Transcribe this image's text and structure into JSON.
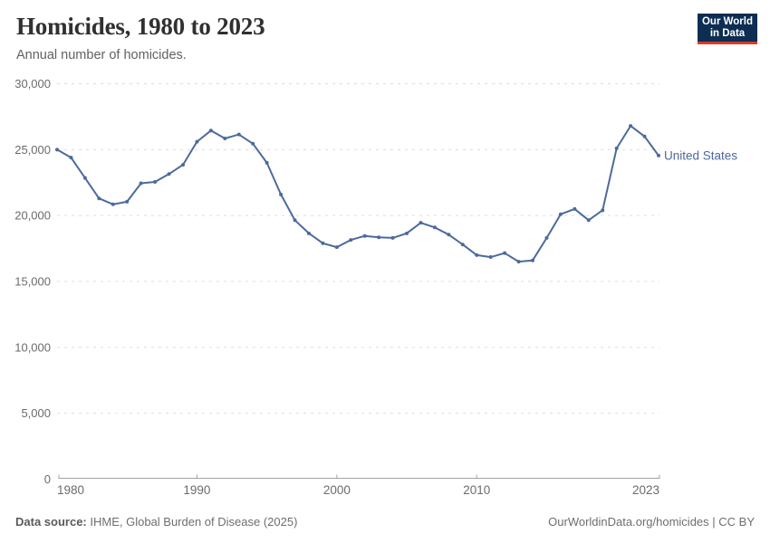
{
  "header": {
    "title": "Homicides, 1980 to 2023",
    "subtitle": "Annual number of homicides.",
    "logo": {
      "line1": "Our World",
      "line2": "in Data",
      "bg_color": "#0d2d52",
      "accent_color": "#d93a2b"
    }
  },
  "chart_data": {
    "type": "line",
    "title": "Homicides, 1980 to 2023",
    "subtitle": "Annual number of homicides.",
    "xlabel": "",
    "ylabel": "",
    "xlim": [
      1980,
      2023
    ],
    "ylim": [
      0,
      30000
    ],
    "grid": "horizontal-dashed",
    "legend_position": "end-of-line",
    "x_ticks": [
      1980,
      1990,
      2000,
      2010,
      2023
    ],
    "x_tick_labels": [
      "1980",
      "1990",
      "2000",
      "2010",
      "2023"
    ],
    "y_ticks": [
      0,
      5000,
      10000,
      15000,
      20000,
      25000,
      30000
    ],
    "y_tick_labels": [
      "0",
      "5,000",
      "10,000",
      "15,000",
      "20,000",
      "25,000",
      "30,000"
    ],
    "series": [
      {
        "name": "United States",
        "color": "#4C6A9C",
        "x": [
          1980,
          1981,
          1982,
          1983,
          1984,
          1985,
          1986,
          1987,
          1988,
          1989,
          1990,
          1991,
          1992,
          1993,
          1994,
          1995,
          1996,
          1997,
          1998,
          1999,
          2000,
          2001,
          2002,
          2003,
          2004,
          2005,
          2006,
          2007,
          2008,
          2009,
          2010,
          2011,
          2012,
          2013,
          2014,
          2015,
          2016,
          2017,
          2018,
          2019,
          2020,
          2021,
          2022,
          2023
        ],
        "values": [
          25000,
          24400,
          22850,
          21300,
          20850,
          21050,
          22450,
          22550,
          23150,
          23850,
          25600,
          26450,
          25850,
          26150,
          25450,
          24000,
          21600,
          19650,
          18650,
          17900,
          17600,
          18150,
          18450,
          18350,
          18300,
          18650,
          19450,
          19100,
          18550,
          17800,
          17000,
          16850,
          17150,
          16500,
          16600,
          18300,
          20100,
          20500,
          19650,
          20400,
          25100,
          26800,
          26000,
          24550
        ]
      }
    ]
  },
  "colors": {
    "line": "#4C6A9C",
    "gridline": "#dddddd",
    "axis": "#a3a3a3",
    "tick_label": "#6b6b6b",
    "title": "#303030",
    "subtitle": "#616161"
  },
  "footer": {
    "source_label": "Data source:",
    "source_text": " IHME, Global Burden of Disease (2025)",
    "attribution": "OurWorldinData.org/homicides | CC BY"
  }
}
